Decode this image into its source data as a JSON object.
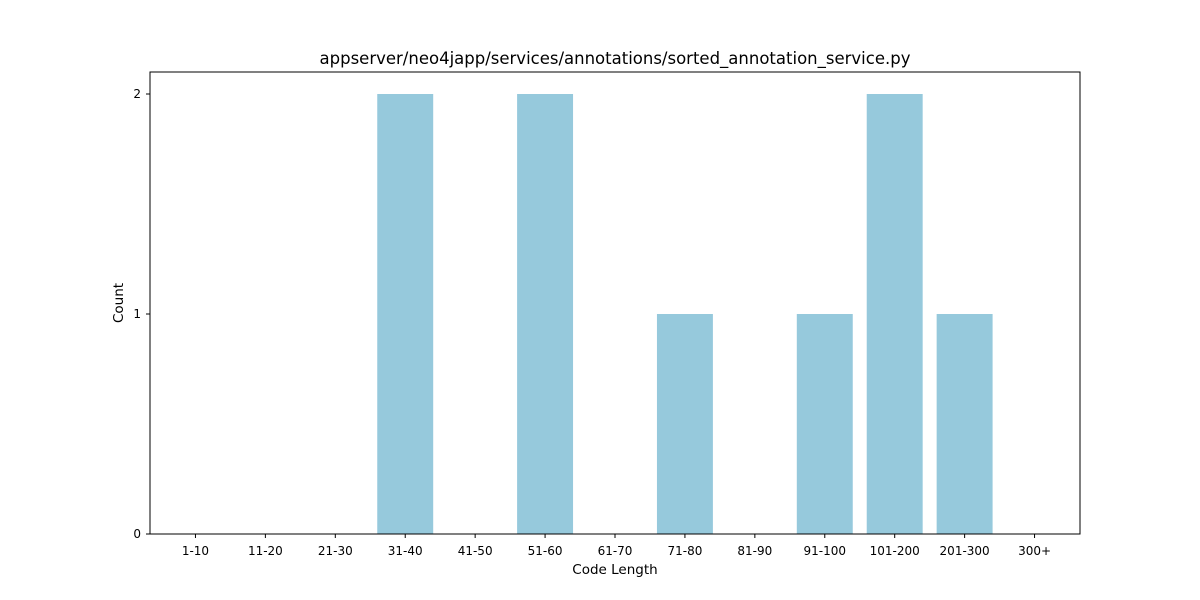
{
  "chart_data": {
    "type": "bar",
    "title": "appserver/neo4japp/services/annotations/sorted_annotation_service.py",
    "xlabel": "Code Length",
    "ylabel": "Count",
    "categories": [
      "1-10",
      "11-20",
      "21-30",
      "31-40",
      "41-50",
      "51-60",
      "61-70",
      "71-80",
      "81-90",
      "91-100",
      "101-200",
      "201-300",
      "300+"
    ],
    "values": [
      0,
      0,
      0,
      2,
      0,
      2,
      0,
      1,
      0,
      1,
      2,
      1,
      0
    ],
    "ylim": [
      0,
      2.1
    ],
    "yticks": [
      0,
      1,
      2
    ],
    "grid": false,
    "bar_color": "#96c9dc"
  }
}
